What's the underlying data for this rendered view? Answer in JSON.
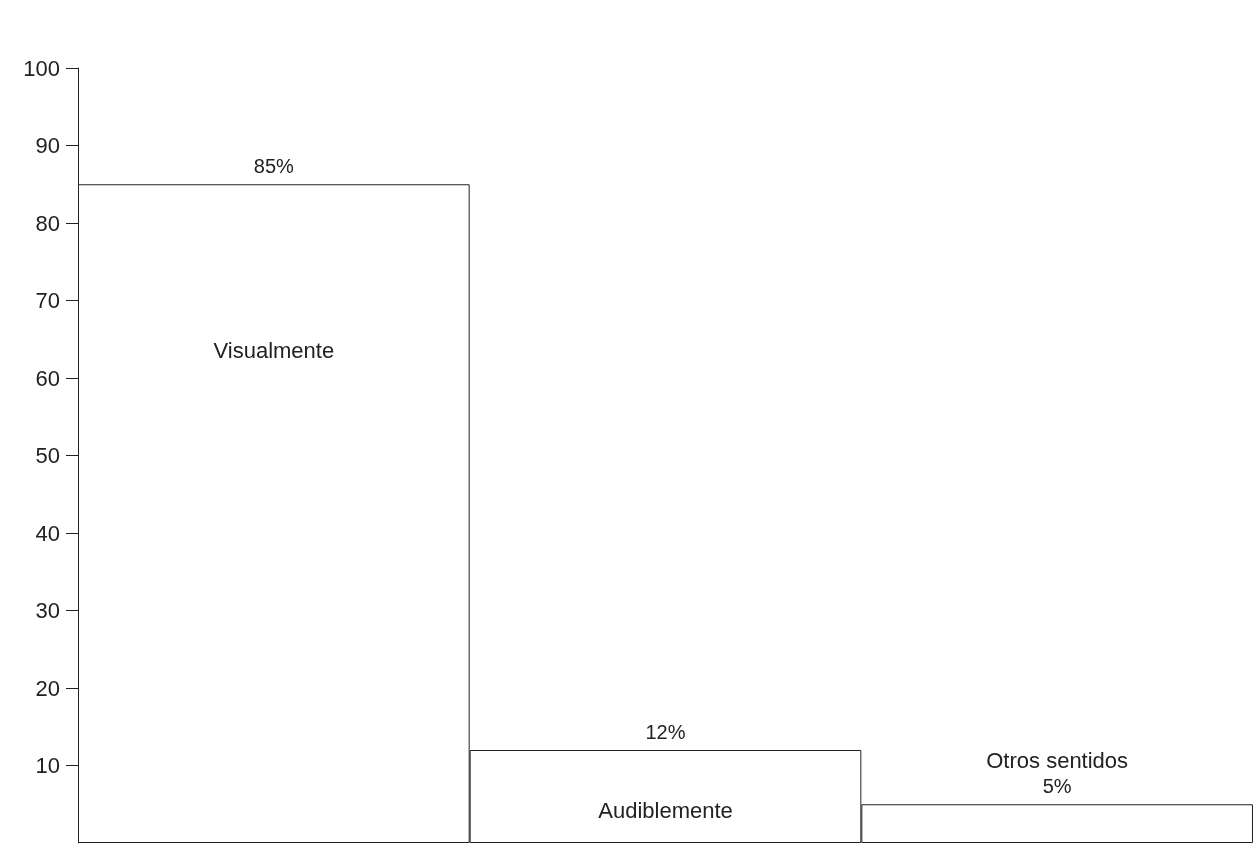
{
  "chart_data": {
    "type": "bar",
    "categories": [
      "Visualmente",
      "Audiblemente",
      "Otros sentidos"
    ],
    "values": [
      85,
      12,
      5
    ],
    "value_labels": [
      "85%",
      "12%",
      "5%"
    ],
    "color": "#ffffff",
    "ylim": [
      0,
      100
    ],
    "yticks": [
      10,
      20,
      30,
      40,
      50,
      60,
      70,
      80,
      90,
      100
    ],
    "grid": false
  }
}
